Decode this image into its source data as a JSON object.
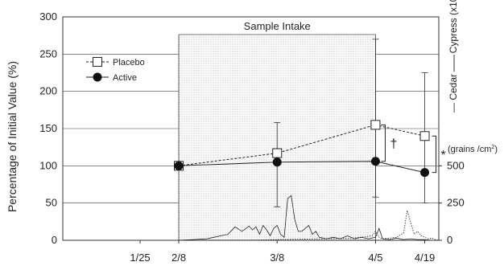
{
  "chart_data": {
    "type": "line",
    "shaded_region_label": "Sample Intake",
    "ylabel_left": "Percentage of Initial Value (%)",
    "ylabel_right_cedar": "Cedar",
    "ylabel_right_cypress": "Cypress (x10)",
    "ylabel_right_unit": "(grains /cm",
    "ylabel_right_unit_sup": "2",
    "ylabel_right_unit_close": ")",
    "x_ticks": [
      {
        "label": "1/25",
        "x": -11
      },
      {
        "label": "2/8",
        "x": 0
      },
      {
        "label": "3/8",
        "x": 28
      },
      {
        "label": "4/5",
        "x": 56
      },
      {
        "label": "4/19",
        "x": 70
      }
    ],
    "xlim": [
      -33,
      74
    ],
    "ylim_left": [
      0,
      300
    ],
    "y_ticks_left": [
      0,
      50,
      100,
      150,
      200,
      250,
      300
    ],
    "ylim_right": [
      0,
      1500
    ],
    "y_ticks_right": [
      0,
      250,
      500
    ],
    "grid": true,
    "legend_position": "top-left",
    "series": [
      {
        "name": "Placebo",
        "marker": "open-square",
        "line_style": "dashed",
        "x": [
          0,
          28,
          56,
          70
        ],
        "y": [
          100,
          117,
          155,
          140
        ],
        "error_upper": [
          null,
          158,
          270,
          225
        ],
        "error_lower": [
          null,
          45,
          58,
          50
        ]
      },
      {
        "name": "Active",
        "marker": "filled-circle",
        "line_style": "solid",
        "x": [
          0,
          28,
          56,
          70
        ],
        "y": [
          100,
          105,
          106,
          91
        ]
      }
    ],
    "significance": [
      {
        "symbol": "†",
        "x": 56
      },
      {
        "symbol": "*",
        "x": 70
      }
    ],
    "pollen_series": [
      {
        "name": "Cedar",
        "line_style": "solid",
        "x": [
          -33,
          -20,
          -10,
          0,
          4,
          8,
          10,
          12,
          14,
          16,
          18,
          20,
          21,
          22,
          23,
          24,
          25,
          26,
          27,
          28,
          29,
          30,
          31,
          32,
          33,
          34,
          35,
          36,
          37,
          38,
          39,
          40,
          42,
          44,
          46,
          48,
          50,
          52,
          54,
          56,
          57,
          58,
          60,
          62,
          64,
          66,
          68,
          70,
          72,
          74
        ],
        "y": [
          0,
          0,
          0,
          0,
          5,
          10,
          20,
          30,
          40,
          90,
          60,
          95,
          70,
          90,
          40,
          100,
          70,
          30,
          80,
          100,
          40,
          20,
          280,
          300,
          140,
          60,
          60,
          80,
          100,
          40,
          60,
          20,
          10,
          20,
          10,
          30,
          10,
          20,
          10,
          20,
          80,
          10,
          5,
          15,
          5,
          10,
          5,
          5,
          0,
          0
        ]
      },
      {
        "name": "Cypress (x10)",
        "line_style": "dotted",
        "x": [
          -33,
          0,
          20,
          28,
          40,
          50,
          55,
          56,
          57,
          58,
          60,
          62,
          64,
          65,
          66,
          67,
          68,
          69,
          70,
          71,
          72,
          73,
          74
        ],
        "y": [
          0,
          0,
          0,
          5,
          10,
          15,
          30,
          60,
          20,
          10,
          15,
          20,
          50,
          200,
          120,
          40,
          60,
          30,
          20,
          10,
          15,
          5,
          0
        ]
      }
    ]
  }
}
